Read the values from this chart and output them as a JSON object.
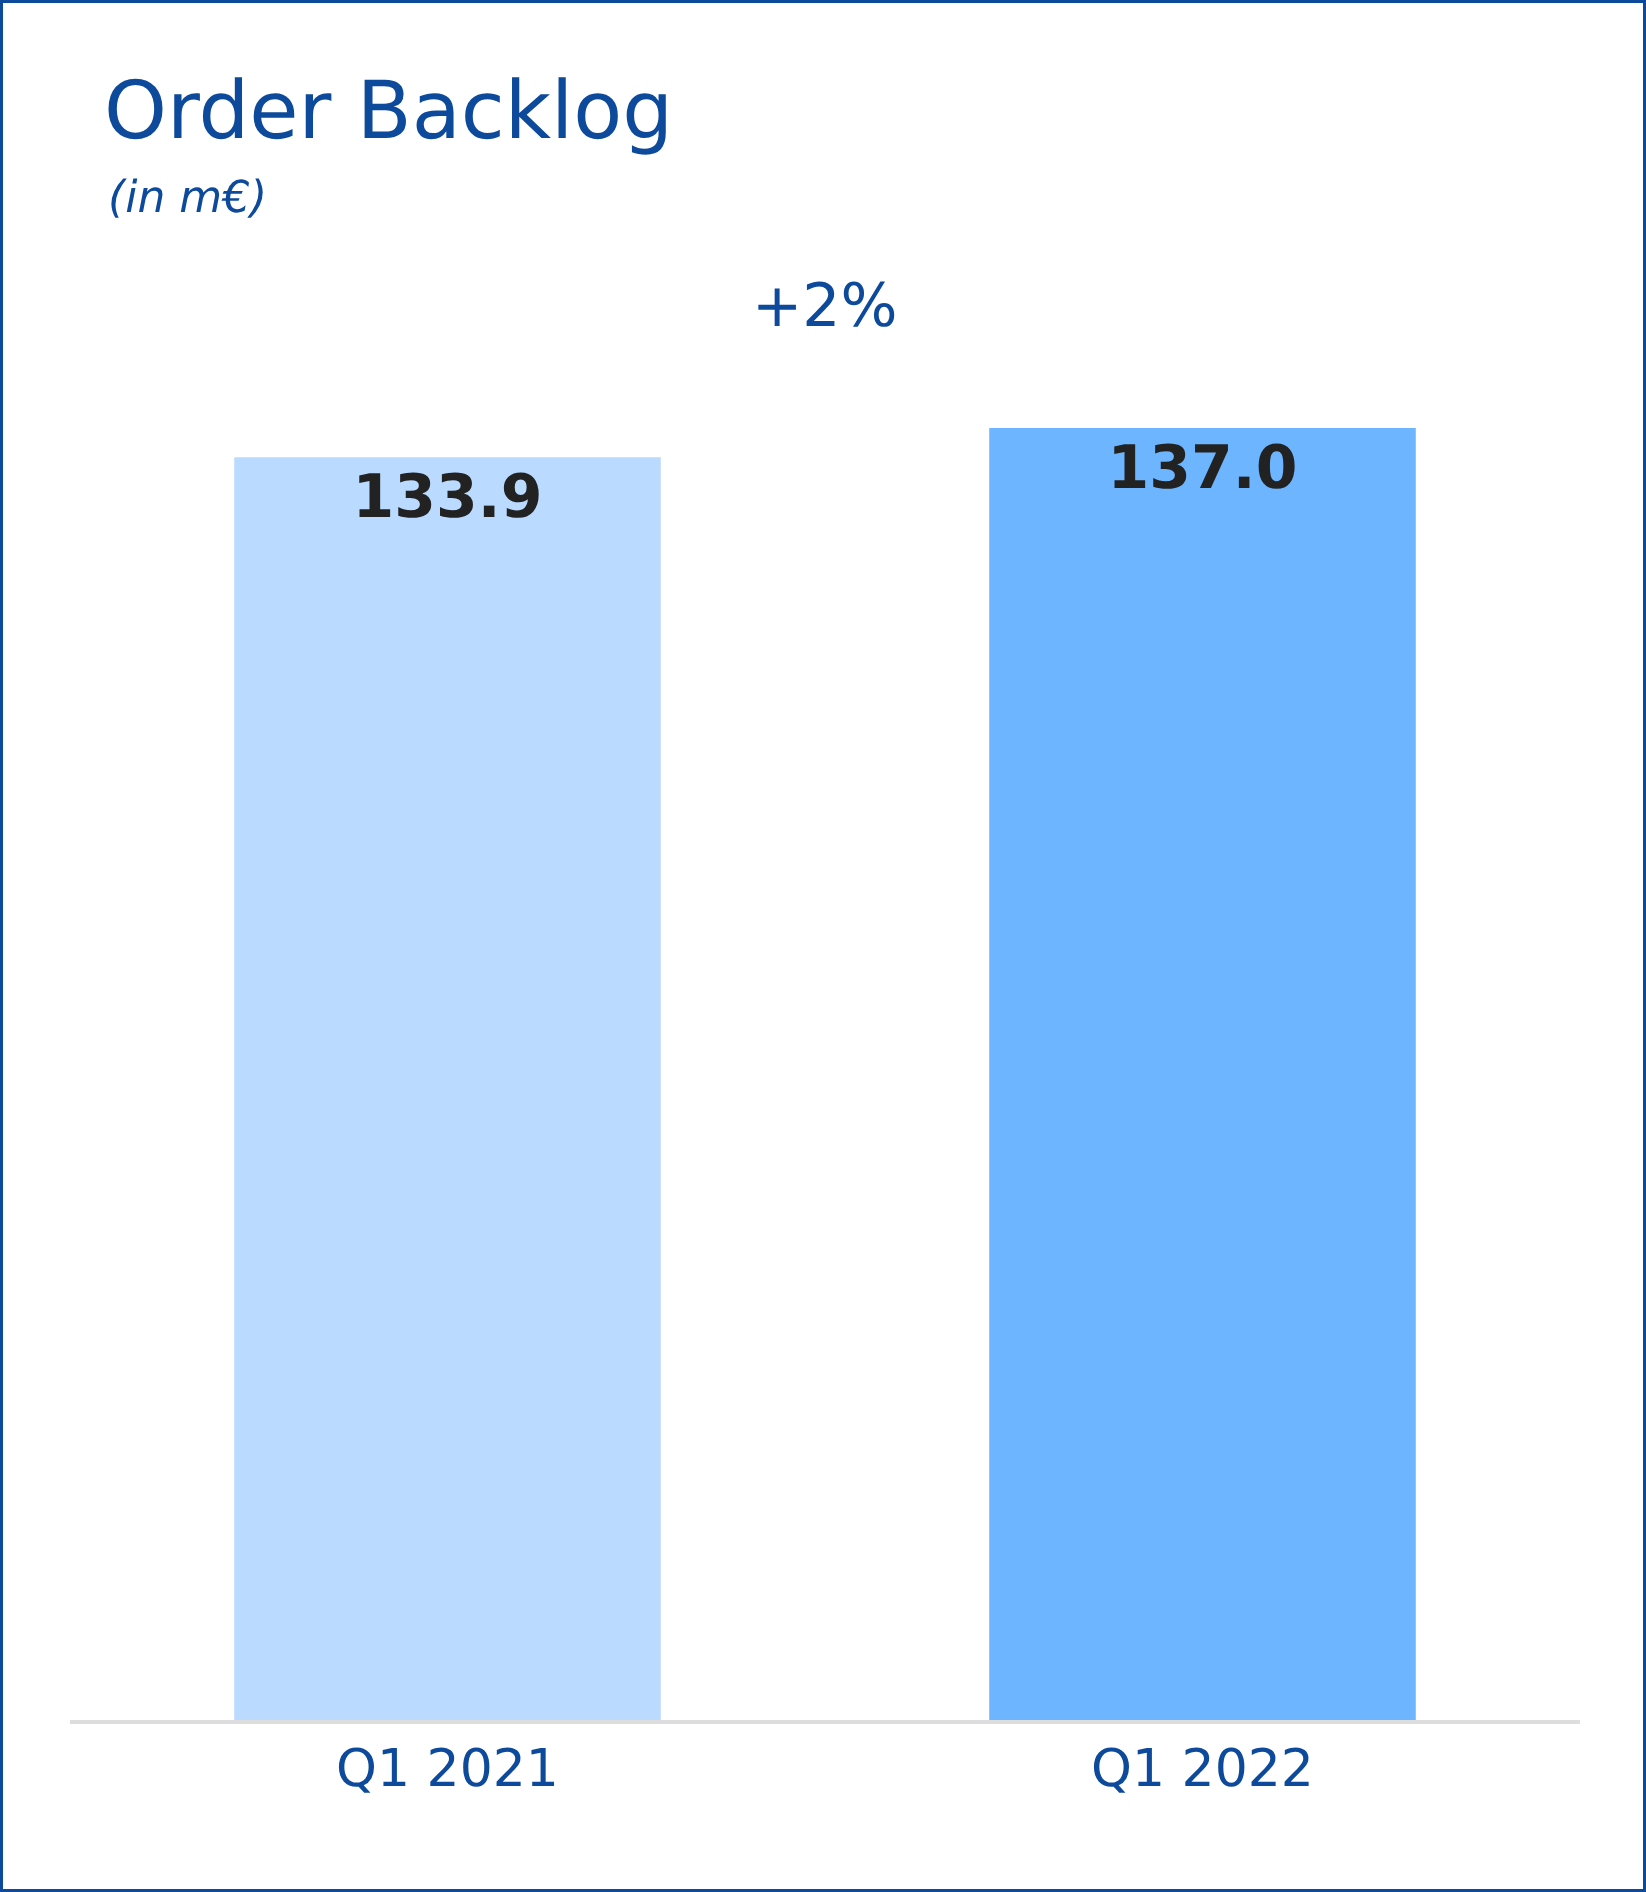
{
  "chart_data": {
    "type": "bar",
    "title": "Order Backlog",
    "subtitle": "(in m€)",
    "categories": [
      "Q1 2021",
      "Q1 2022"
    ],
    "values": [
      133.9,
      137.0
    ],
    "value_labels": [
      "133.9",
      "137.0"
    ],
    "colors": [
      "#badaff",
      "#6db5ff"
    ],
    "legend": false,
    "annotations": [
      "+2%"
    ]
  }
}
